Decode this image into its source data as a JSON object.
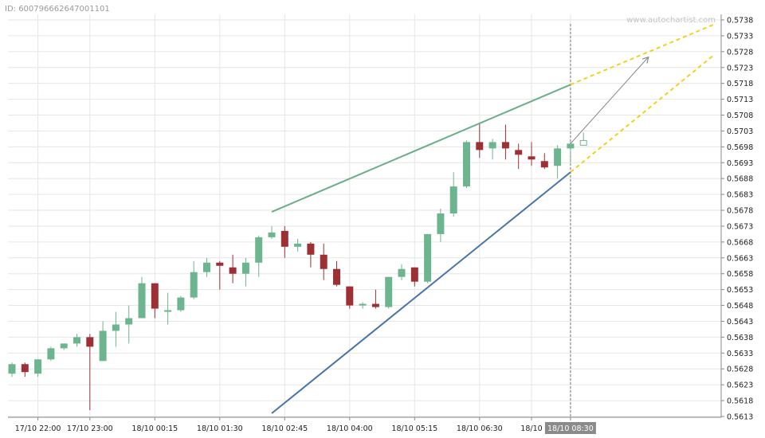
{
  "header": {
    "id_label": "ID: 6007966626470011​01",
    "watermark": "www.autochartist.com"
  },
  "colors": {
    "up": "#6db58e",
    "down": "#9c3035",
    "resistance": "#6aae8a",
    "support": "#4a74a8",
    "forecast": "#f2d21c",
    "arrow": "#888888",
    "grid": "#e6e6e6",
    "axis": "#888888",
    "cursor": "#777777",
    "cursor_label_bg": "#8a8a8a"
  },
  "chart_data": {
    "type": "candlestick",
    "pattern": "rising wedge",
    "y_ticks": [
      "0.5738",
      "0.5733",
      "0.5728",
      "0.5723",
      "0.5718",
      "0.5713",
      "0.5708",
      "0.5703",
      "0.5698",
      "0.5693",
      "0.5688",
      "0.5683",
      "0.5678",
      "0.5673",
      "0.5668",
      "0.5663",
      "0.5658",
      "0.5653",
      "0.5648",
      "0.5643",
      "0.5638",
      "0.5633",
      "0.5628",
      "0.5623",
      "0.5618",
      "0.5613"
    ],
    "ylim": [
      0.5612,
      0.574
    ],
    "x_labels": [
      {
        "index": 2,
        "text": "17/10 22:00"
      },
      {
        "index": 6,
        "text": "17/10 23:00"
      },
      {
        "index": 11,
        "text": "18/10 00:15"
      },
      {
        "index": 16,
        "text": "18/10 01:30"
      },
      {
        "index": 21,
        "text": "18/10 02:45"
      },
      {
        "index": 26,
        "text": "18/10 04:00"
      },
      {
        "index": 31,
        "text": "18/10 05:15"
      },
      {
        "index": 36,
        "text": "18/10 06:30"
      },
      {
        "index": 40,
        "text": "18/10"
      },
      {
        "index": 43,
        "text": "18/10 08:30",
        "highlight": true
      }
    ],
    "candles": [
      {
        "o": 0.56265,
        "h": 0.563,
        "l": 0.56255,
        "c": 0.56295
      },
      {
        "o": 0.56295,
        "h": 0.563,
        "l": 0.56255,
        "c": 0.5627
      },
      {
        "o": 0.56265,
        "h": 0.5631,
        "l": 0.56255,
        "c": 0.5631
      },
      {
        "o": 0.5631,
        "h": 0.5635,
        "l": 0.56305,
        "c": 0.56345
      },
      {
        "o": 0.56345,
        "h": 0.5636,
        "l": 0.5634,
        "c": 0.5636
      },
      {
        "o": 0.5636,
        "h": 0.5639,
        "l": 0.5635,
        "c": 0.5638
      },
      {
        "o": 0.5638,
        "h": 0.5639,
        "l": 0.5615,
        "c": 0.5635
      },
      {
        "o": 0.56305,
        "h": 0.5643,
        "l": 0.56305,
        "c": 0.564
      },
      {
        "o": 0.564,
        "h": 0.5646,
        "l": 0.5635,
        "c": 0.5642
      },
      {
        "o": 0.5642,
        "h": 0.5648,
        "l": 0.5636,
        "c": 0.5644
      },
      {
        "o": 0.5644,
        "h": 0.5657,
        "l": 0.5644,
        "c": 0.5655
      },
      {
        "o": 0.5655,
        "h": 0.5655,
        "l": 0.5644,
        "c": 0.5647
      },
      {
        "o": 0.56465,
        "h": 0.5652,
        "l": 0.5642,
        "c": 0.56465
      },
      {
        "o": 0.56465,
        "h": 0.5651,
        "l": 0.5646,
        "c": 0.56505
      },
      {
        "o": 0.56505,
        "h": 0.5662,
        "l": 0.565,
        "c": 0.56585
      },
      {
        "o": 0.56585,
        "h": 0.5663,
        "l": 0.5657,
        "c": 0.56615
      },
      {
        "o": 0.56615,
        "h": 0.5662,
        "l": 0.5653,
        "c": 0.56605
      },
      {
        "o": 0.566,
        "h": 0.5664,
        "l": 0.5655,
        "c": 0.5658
      },
      {
        "o": 0.5658,
        "h": 0.5663,
        "l": 0.5654,
        "c": 0.56615
      },
      {
        "o": 0.56615,
        "h": 0.567,
        "l": 0.5657,
        "c": 0.56695
      },
      {
        "o": 0.56695,
        "h": 0.5673,
        "l": 0.5669,
        "c": 0.5671
      },
      {
        "o": 0.56715,
        "h": 0.5673,
        "l": 0.5663,
        "c": 0.56665
      },
      {
        "o": 0.56665,
        "h": 0.5669,
        "l": 0.5665,
        "c": 0.56675
      },
      {
        "o": 0.56675,
        "h": 0.5668,
        "l": 0.566,
        "c": 0.5664
      },
      {
        "o": 0.5664,
        "h": 0.56675,
        "l": 0.5656,
        "c": 0.56595
      },
      {
        "o": 0.56595,
        "h": 0.5662,
        "l": 0.5654,
        "c": 0.56545
      },
      {
        "o": 0.5654,
        "h": 0.5654,
        "l": 0.5647,
        "c": 0.5648
      },
      {
        "o": 0.5648,
        "h": 0.5649,
        "l": 0.5647,
        "c": 0.56485
      },
      {
        "o": 0.56485,
        "h": 0.5653,
        "l": 0.5647,
        "c": 0.56475
      },
      {
        "o": 0.56475,
        "h": 0.5657,
        "l": 0.5647,
        "c": 0.5657
      },
      {
        "o": 0.5657,
        "h": 0.5661,
        "l": 0.5656,
        "c": 0.56595
      },
      {
        "o": 0.566,
        "h": 0.566,
        "l": 0.5654,
        "c": 0.56555
      },
      {
        "o": 0.56555,
        "h": 0.56705,
        "l": 0.5655,
        "c": 0.56705
      },
      {
        "o": 0.56705,
        "h": 0.56785,
        "l": 0.5668,
        "c": 0.5677
      },
      {
        "o": 0.5677,
        "h": 0.569,
        "l": 0.5676,
        "c": 0.56855
      },
      {
        "o": 0.56855,
        "h": 0.57,
        "l": 0.5685,
        "c": 0.56995
      },
      {
        "o": 0.56995,
        "h": 0.57055,
        "l": 0.56945,
        "c": 0.5697
      },
      {
        "o": 0.56975,
        "h": 0.57005,
        "l": 0.5694,
        "c": 0.56995
      },
      {
        "o": 0.56995,
        "h": 0.5705,
        "l": 0.5694,
        "c": 0.56975
      },
      {
        "o": 0.5697,
        "h": 0.5699,
        "l": 0.5691,
        "c": 0.56955
      },
      {
        "o": 0.5695,
        "h": 0.56995,
        "l": 0.5692,
        "c": 0.5694
      },
      {
        "o": 0.56935,
        "h": 0.5696,
        "l": 0.5691,
        "c": 0.56915
      },
      {
        "o": 0.5692,
        "h": 0.56985,
        "l": 0.5688,
        "c": 0.56975
      },
      {
        "o": 0.56975,
        "h": 0.56995,
        "l": 0.5693,
        "c": 0.5699
      },
      {
        "o": 0.56985,
        "h": 0.57025,
        "l": 0.56995,
        "c": 0.57,
        "hollow": true
      }
    ],
    "trendlines": [
      {
        "name": "resistance",
        "from": {
          "index": 20,
          "y": 0.56775
        },
        "to": {
          "index": 43,
          "y": 0.57176
        }
      },
      {
        "name": "support",
        "from": {
          "index": 20,
          "y": 0.5614
        },
        "to": {
          "index": 43,
          "y": 0.569
        }
      }
    ],
    "forecast_lines": [
      {
        "from": {
          "index": 43,
          "y": 0.57176
        },
        "to": {
          "index": 54,
          "y": 0.57365
        }
      },
      {
        "from": {
          "index": 43,
          "y": 0.569
        },
        "to": {
          "index": 54,
          "y": 0.57268
        }
      }
    ],
    "forecast_arrow": {
      "from": {
        "index": 43,
        "y": 0.5699
      },
      "to": {
        "index": 49,
        "y": 0.57263
      }
    },
    "cursor_index": 43
  }
}
